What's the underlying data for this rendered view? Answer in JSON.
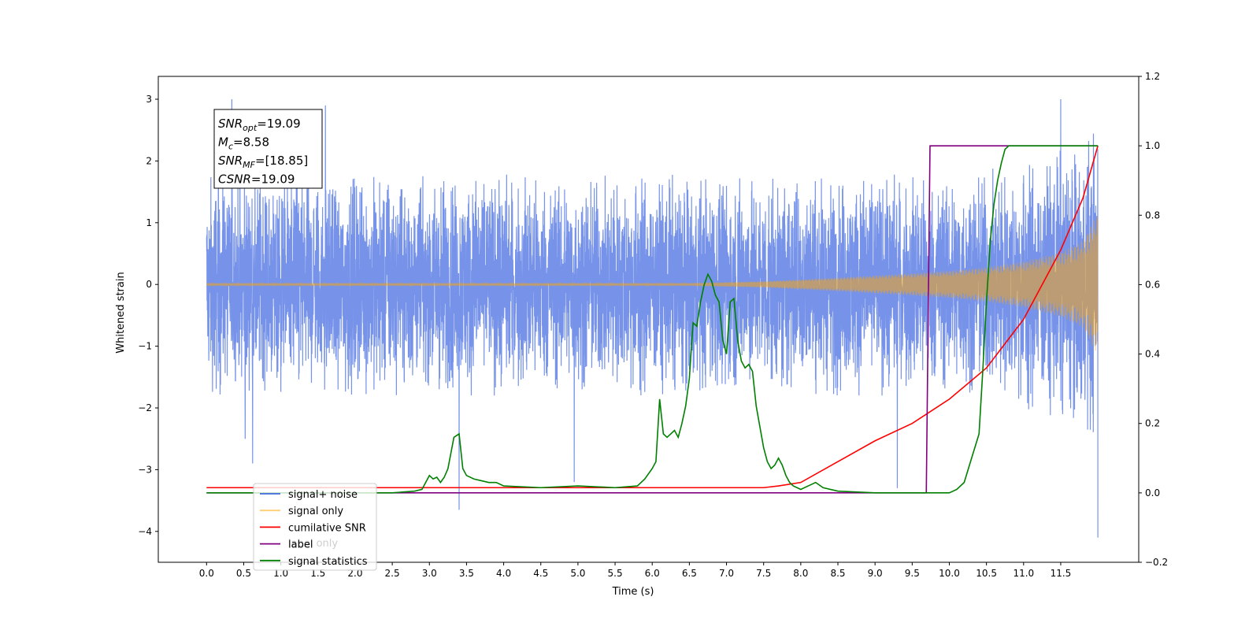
{
  "chart_data": {
    "type": "line",
    "xlabel": "Time (s)",
    "ylabel": "Whitened strain",
    "xlim": [
      -0.65,
      12.55
    ],
    "ylim_left": [
      -4.5,
      3.37
    ],
    "ylim_right": [
      -0.2,
      1.2
    ],
    "xticks": [
      0.0,
      0.5,
      1.0,
      1.5,
      2.0,
      2.5,
      3.0,
      3.5,
      4.0,
      4.5,
      5.0,
      5.5,
      6.0,
      6.5,
      7.0,
      7.5,
      8.0,
      8.5,
      9.0,
      9.5,
      10.0,
      10.5,
      11.0,
      11.5
    ],
    "xtick_labels": [
      "0.0",
      "0.5",
      "1.0",
      "1.5",
      "2.0",
      "2.5",
      "3.0",
      "3.5",
      "4.0",
      "4.5",
      "5.0",
      "5.5",
      "6.0",
      "6.5",
      "7.0",
      "7.5",
      "8.0",
      "8.5",
      "9.0",
      "9.5",
      "10.0",
      "10.5",
      "11.0",
      "11.5"
    ],
    "yticks_left": [
      3,
      2,
      1,
      0,
      -1,
      -2,
      -3,
      -4
    ],
    "ytick_labels_left": [
      "3",
      "2",
      "1",
      "0",
      "−1",
      "−2",
      "−3",
      "−4"
    ],
    "yticks_right": [
      1.2,
      1.0,
      0.8,
      0.6,
      0.4,
      0.2,
      0.0,
      -0.2
    ],
    "ytick_labels_right": [
      "1.2",
      "1.0",
      "0.8",
      "0.6",
      "0.4",
      "0.2",
      "0.0",
      "−0.2"
    ],
    "annotation": [
      {
        "base": "SNR",
        "sub": "opt",
        "value": "=19.09"
      },
      {
        "base": "M",
        "sub": "c",
        "value": "=8.58"
      },
      {
        "base": "SNR",
        "sub": "MF",
        "value": "=[18.85]"
      },
      {
        "base": "CSNR",
        "sub": "",
        "value": "=19.09"
      }
    ],
    "legend": {
      "placement": "lower-left",
      "entries": [
        {
          "label": "signal+ noise",
          "color": "#4169e1"
        },
        {
          "label": "signal only",
          "color": "#ffa500"
        },
        {
          "label": "cumilative SNR",
          "color": "#ff0000"
        },
        {
          "label": "label",
          "color": "#800080"
        },
        {
          "label": "signal statistics",
          "color": "#008000"
        }
      ],
      "hidden_overlap_text": "label only"
    },
    "series": [
      {
        "name": "signal+ noise",
        "axis": "left",
        "color": "#4169e1",
        "noise_envelope": {
          "x": [
            0,
            10,
            11,
            11.5,
            11.75,
            11.95,
            12.0
          ],
          "upper": [
            1.8,
            1.8,
            2.0,
            2.2,
            2.3,
            2.6,
            3.0
          ],
          "lower": [
            -1.8,
            -1.8,
            -2.0,
            -2.2,
            -2.3,
            -2.6,
            -3.0
          ]
        },
        "peaks_x": [
          0.34,
          0.52,
          0.62,
          1.6,
          3.4,
          4.95,
          9.3,
          11.5,
          12.0
        ],
        "peaks_y": [
          3.0,
          -2.5,
          -2.9,
          2.9,
          -3.65,
          -3.2,
          -3.3,
          3.0,
          -4.1
        ]
      },
      {
        "name": "signal only",
        "axis": "left",
        "color": "#ffa500",
        "envelope_x": [
          0,
          6.5,
          7.5,
          8.5,
          9.5,
          10.0,
          10.5,
          11.0,
          11.5,
          11.8,
          12.0
        ],
        "envelope_amp": [
          0.02,
          0.02,
          0.05,
          0.11,
          0.18,
          0.22,
          0.28,
          0.37,
          0.52,
          0.7,
          1.15
        ]
      },
      {
        "name": "cumilative SNR",
        "axis": "right",
        "x": [
          0.0,
          7.5,
          7.7,
          8.0,
          8.5,
          9.0,
          9.5,
          10.0,
          10.5,
          11.0,
          11.5,
          11.8,
          12.0
        ],
        "y": [
          0.015,
          0.015,
          0.02,
          0.03,
          0.09,
          0.15,
          0.2,
          0.27,
          0.36,
          0.5,
          0.7,
          0.85,
          1.0
        ]
      },
      {
        "name": "label",
        "axis": "right",
        "x": [
          0.0,
          9.69,
          9.74,
          12.0
        ],
        "y": [
          0.0,
          0.0,
          1.0,
          1.0
        ]
      },
      {
        "name": "signal statistics",
        "axis": "right",
        "x": [
          0.0,
          2.5,
          2.8,
          2.9,
          3.0,
          3.05,
          3.1,
          3.15,
          3.2,
          3.25,
          3.33,
          3.4,
          3.45,
          3.5,
          3.6,
          3.7,
          3.8,
          3.9,
          4.0,
          4.5,
          5.0,
          5.5,
          5.8,
          5.9,
          6.0,
          6.05,
          6.1,
          6.15,
          6.2,
          6.25,
          6.3,
          6.35,
          6.4,
          6.45,
          6.5,
          6.55,
          6.6,
          6.65,
          6.7,
          6.75,
          6.8,
          6.85,
          6.9,
          6.95,
          7.0,
          7.05,
          7.1,
          7.15,
          7.2,
          7.25,
          7.3,
          7.35,
          7.4,
          7.45,
          7.5,
          7.55,
          7.6,
          7.65,
          7.7,
          7.75,
          7.8,
          7.85,
          7.9,
          8.0,
          8.1,
          8.2,
          8.3,
          8.5,
          9.0,
          10.0,
          10.1,
          10.2,
          10.3,
          10.4,
          10.45,
          10.5,
          10.55,
          10.6,
          10.65,
          10.7,
          10.75,
          10.8,
          12.0
        ],
        "y": [
          0.0,
          0.0,
          0.005,
          0.01,
          0.05,
          0.04,
          0.045,
          0.03,
          0.045,
          0.07,
          0.16,
          0.17,
          0.07,
          0.05,
          0.04,
          0.035,
          0.03,
          0.03,
          0.02,
          0.015,
          0.02,
          0.015,
          0.02,
          0.04,
          0.07,
          0.09,
          0.27,
          0.17,
          0.16,
          0.17,
          0.18,
          0.16,
          0.2,
          0.25,
          0.33,
          0.49,
          0.48,
          0.55,
          0.6,
          0.63,
          0.61,
          0.57,
          0.55,
          0.44,
          0.4,
          0.55,
          0.56,
          0.44,
          0.38,
          0.36,
          0.37,
          0.35,
          0.25,
          0.19,
          0.13,
          0.09,
          0.07,
          0.08,
          0.1,
          0.08,
          0.05,
          0.03,
          0.02,
          0.01,
          0.02,
          0.03,
          0.015,
          0.005,
          0.0,
          0.0,
          0.01,
          0.03,
          0.1,
          0.17,
          0.35,
          0.55,
          0.72,
          0.83,
          0.9,
          0.95,
          0.99,
          1.0,
          1.0
        ]
      }
    ]
  }
}
